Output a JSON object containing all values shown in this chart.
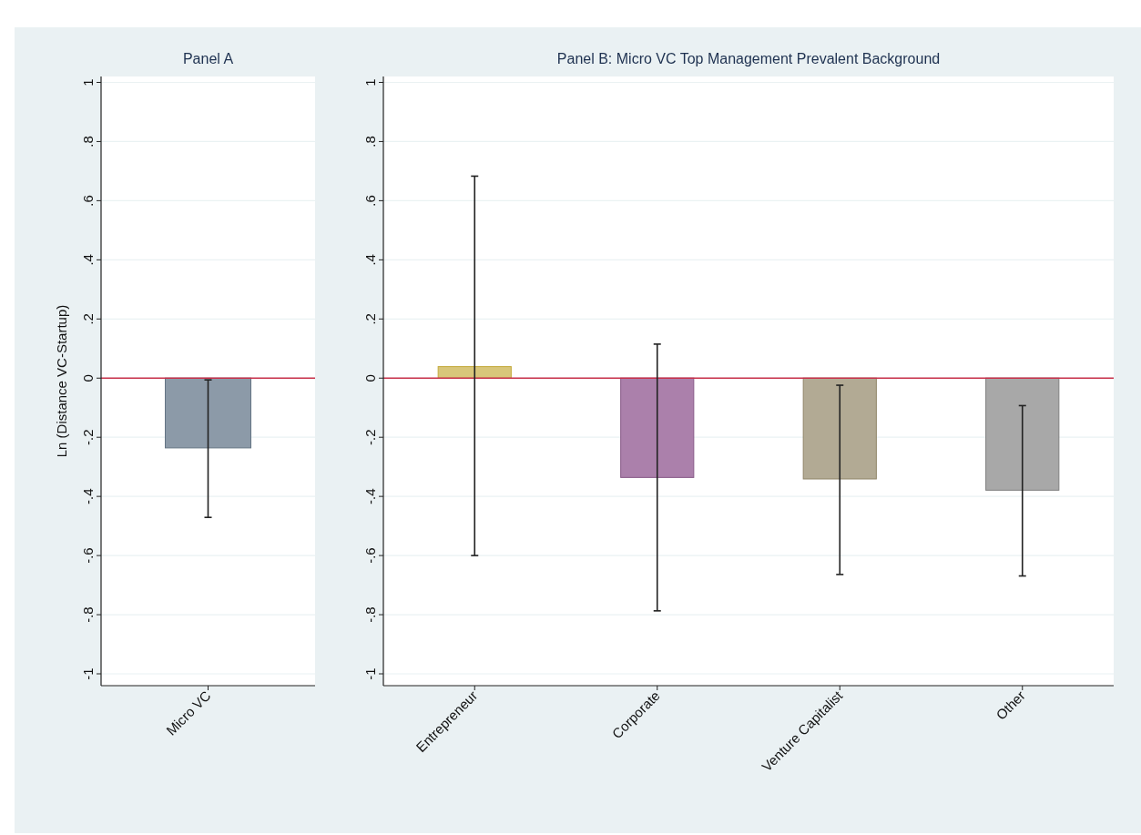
{
  "chart_data": [
    {
      "type": "bar",
      "title": "Panel A",
      "ylabel": "Ln (Distance VC-Startup)",
      "categories": [
        "Micro VC"
      ],
      "values": [
        -0.236
      ],
      "errors": [
        [
          -0.471,
          -0.006
        ]
      ],
      "colors": [
        "#8c9aa8"
      ],
      "ylim": [
        -1.04,
        1.02
      ],
      "yticks": [
        {
          "value": -1,
          "label": "-1"
        },
        {
          "value": -0.8,
          "label": "-.8"
        },
        {
          "value": -0.6,
          "label": "-.6"
        },
        {
          "value": -0.4,
          "label": "-.4"
        },
        {
          "value": -0.2,
          "label": "-.2"
        },
        {
          "value": 0,
          "label": "0"
        },
        {
          "value": 0.2,
          "label": ".2"
        },
        {
          "value": 0.4,
          "label": ".4"
        },
        {
          "value": 0.6,
          "label": ".6"
        },
        {
          "value": 0.8,
          "label": ".8"
        },
        {
          "value": 1,
          "label": "1"
        }
      ],
      "grid": "y",
      "ref_lines": [
        {
          "axis": "y",
          "value": 0,
          "color": "#c8304a"
        }
      ]
    },
    {
      "type": "bar",
      "title": "Panel B: Micro VC Top Management Prevalent Background",
      "categories": [
        "Entrepreneur",
        "Corporate",
        "Venture Capitalist",
        "Other"
      ],
      "values": [
        0.039,
        -0.336,
        -0.341,
        -0.379
      ],
      "errors": [
        [
          -0.6,
          0.683
        ],
        [
          -0.787,
          0.115
        ],
        [
          -0.664,
          -0.024
        ],
        [
          -0.669,
          -0.093
        ]
      ],
      "colors": [
        "#d8c67a",
        "#ab80ab",
        "#b2aa94",
        "#a8a8a8"
      ],
      "ylim": [
        -1.04,
        1.02
      ],
      "yticks": [
        {
          "value": -1,
          "label": "-1"
        },
        {
          "value": -0.8,
          "label": "-.8"
        },
        {
          "value": -0.6,
          "label": "-.6"
        },
        {
          "value": -0.4,
          "label": "-.4"
        },
        {
          "value": -0.2,
          "label": "-.2"
        },
        {
          "value": 0,
          "label": "0"
        },
        {
          "value": 0.2,
          "label": ".2"
        },
        {
          "value": 0.4,
          "label": ".4"
        },
        {
          "value": 0.6,
          "label": ".6"
        },
        {
          "value": 0.8,
          "label": ".8"
        },
        {
          "value": 1,
          "label": "1"
        }
      ],
      "grid": "y",
      "ref_lines": [
        {
          "axis": "y",
          "value": 0,
          "color": "#c8304a"
        }
      ]
    }
  ]
}
